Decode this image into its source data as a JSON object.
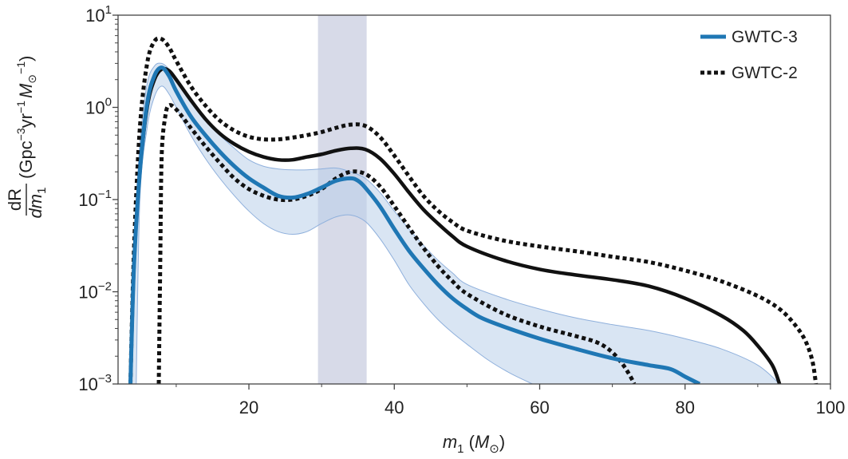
{
  "chart_data": {
    "type": "line",
    "title": "",
    "xlabel": {
      "var": "m",
      "sub": "1",
      "unit": "M",
      "unit_sub": "⊙"
    },
    "ylabel": {
      "numerator": "dR",
      "denominator": "dm",
      "denominator_sub": "1",
      "units_text": "(Gpc",
      "units_exp1": "−3",
      "units_mid": "yr",
      "units_exp2": "−1",
      "units_M": "M",
      "units_M_sub": "⊙",
      "units_exp3": "−1",
      "units_close": ")"
    },
    "x_scale": "linear",
    "y_scale": "log",
    "xlim": [
      2,
      100
    ],
    "ylim": [
      0.001,
      10
    ],
    "x_ticks": [
      {
        "value": 20,
        "label": "20"
      },
      {
        "value": 40,
        "label": "40"
      },
      {
        "value": 60,
        "label": "60"
      },
      {
        "value": 80,
        "label": "80"
      },
      {
        "value": 100,
        "label": "100"
      }
    ],
    "y_ticks": [
      {
        "value": 0.001,
        "base": "10",
        "exp": "−3"
      },
      {
        "value": 0.01,
        "base": "10",
        "exp": "−2"
      },
      {
        "value": 0.1,
        "base": "10",
        "exp": "−1"
      },
      {
        "value": 1,
        "base": "10",
        "exp": "0"
      },
      {
        "value": 10,
        "base": "10",
        "exp": "1"
      }
    ],
    "highlight_band": {
      "x_range": [
        29.5,
        36.2
      ],
      "color": "#c9cde0"
    },
    "legend": {
      "position": "top-right",
      "entries": [
        {
          "label": "GWTC-3",
          "style": "solid",
          "color": "#1f77b4"
        },
        {
          "label": "GWTC-2",
          "style": "dotted",
          "color": "#111111"
        }
      ]
    },
    "series": [
      {
        "label": "GWTC-3",
        "style": "solid",
        "color": "#1f77b4",
        "x": [
          3.7,
          4.2,
          5.0,
          6.0,
          7.0,
          8.0,
          9.0,
          10.0,
          12.0,
          14.0,
          16.0,
          18.0,
          20.0,
          22.0,
          24.0,
          26.0,
          28.0,
          30.0,
          32.0,
          34.0,
          35.0,
          36.0,
          38.0,
          40.0,
          42.0,
          44.0,
          46.0,
          48.0,
          50.0,
          52.0,
          55.0,
          60.0,
          65.0,
          70.0,
          75.0,
          78.0,
          80.0,
          82.0
        ],
        "y": [
          0.001,
          0.02,
          0.2,
          1.1,
          2.2,
          2.7,
          2.2,
          1.5,
          0.8,
          0.5,
          0.33,
          0.23,
          0.17,
          0.135,
          0.11,
          0.105,
          0.115,
          0.135,
          0.16,
          0.17,
          0.16,
          0.135,
          0.085,
          0.048,
          0.028,
          0.018,
          0.012,
          0.0085,
          0.0065,
          0.0052,
          0.0042,
          0.0031,
          0.0024,
          0.0019,
          0.0016,
          0.00145,
          0.0012,
          0.001
        ]
      },
      {
        "label": "GWTC-3 90% credible upper",
        "style": "band-upper",
        "color": "#aec7e8",
        "x": [
          3.7,
          4.2,
          5.0,
          6.0,
          7.0,
          8.0,
          9.0,
          10.0,
          12.0,
          14.0,
          16.0,
          18.0,
          20.0,
          22.0,
          24.0,
          26.0,
          28.0,
          30.0,
          32.0,
          34.0,
          36.0,
          38.0,
          40.0,
          42.0,
          44.0,
          46.0,
          48.0,
          50.0,
          55.0,
          60.0,
          65.0,
          70.0,
          75.0,
          80.0,
          85.0,
          90.0,
          93.0
        ],
        "y": [
          0.001,
          0.03,
          0.4,
          1.8,
          2.8,
          3.0,
          2.6,
          2.0,
          1.2,
          0.75,
          0.5,
          0.36,
          0.27,
          0.23,
          0.215,
          0.21,
          0.21,
          0.215,
          0.22,
          0.2,
          0.17,
          0.12,
          0.075,
          0.048,
          0.032,
          0.022,
          0.016,
          0.012,
          0.0085,
          0.0065,
          0.0052,
          0.0044,
          0.0038,
          0.0031,
          0.0024,
          0.0016,
          0.001
        ]
      },
      {
        "label": "GWTC-3 90% credible lower",
        "style": "band-lower",
        "color": "#aec7e8",
        "x": [
          4.5,
          5.0,
          6.0,
          7.0,
          8.0,
          9.0,
          10.0,
          12.0,
          14.0,
          16.0,
          18.0,
          20.0,
          22.0,
          24.0,
          26.0,
          28.0,
          30.0,
          32.0,
          34.0,
          36.0,
          38.0,
          40.0,
          42.0,
          44.0,
          46.0,
          48.0,
          50.0,
          53.0,
          56.0,
          59.0
        ],
        "y": [
          0.001,
          0.1,
          0.6,
          1.3,
          1.7,
          1.4,
          1.0,
          0.5,
          0.28,
          0.17,
          0.11,
          0.075,
          0.055,
          0.045,
          0.042,
          0.045,
          0.055,
          0.065,
          0.068,
          0.058,
          0.038,
          0.022,
          0.012,
          0.0075,
          0.005,
          0.0036,
          0.0027,
          0.0018,
          0.0013,
          0.001
        ]
      },
      {
        "label": "GWTC-2 median",
        "style": "solid",
        "color": "#111111",
        "x": [
          3.7,
          4.2,
          5.0,
          6.0,
          7.0,
          8.0,
          9.0,
          10.0,
          12.0,
          14.0,
          16.0,
          18.0,
          20.0,
          22.0,
          24.0,
          26.0,
          28.0,
          30.0,
          32.0,
          34.0,
          36.0,
          38.0,
          40.0,
          42.0,
          44.0,
          46.0,
          48.0,
          50.0,
          55.0,
          60.0,
          65.0,
          70.0,
          75.0,
          80.0,
          85.0,
          88.0,
          90.0,
          92.0,
          93.0
        ],
        "y": [
          0.001,
          0.02,
          0.2,
          1.0,
          2.0,
          2.6,
          2.5,
          2.0,
          1.2,
          0.75,
          0.52,
          0.4,
          0.33,
          0.29,
          0.27,
          0.27,
          0.29,
          0.31,
          0.34,
          0.36,
          0.35,
          0.28,
          0.19,
          0.12,
          0.078,
          0.055,
          0.04,
          0.031,
          0.022,
          0.0175,
          0.0152,
          0.0135,
          0.0115,
          0.0085,
          0.0055,
          0.0038,
          0.0026,
          0.0016,
          0.001
        ]
      },
      {
        "label": "GWTC-2 90% credible upper",
        "style": "dotted",
        "color": "#111111",
        "x": [
          3.7,
          4.2,
          5.0,
          6.0,
          7.0,
          8.0,
          9.0,
          10.0,
          12.0,
          14.0,
          16.0,
          18.0,
          20.0,
          22.0,
          24.0,
          26.0,
          28.0,
          30.0,
          32.0,
          34.0,
          36.0,
          38.0,
          40.0,
          42.0,
          44.0,
          46.0,
          48.0,
          50.0,
          55.0,
          60.0,
          65.0,
          70.0,
          75.0,
          80.0,
          85.0,
          90.0,
          93.0,
          95.0,
          96.5,
          97.5,
          98.0
        ],
        "y": [
          0.001,
          0.03,
          0.6,
          3.0,
          5.2,
          5.5,
          4.5,
          3.2,
          1.7,
          1.05,
          0.72,
          0.56,
          0.48,
          0.45,
          0.45,
          0.47,
          0.5,
          0.54,
          0.6,
          0.65,
          0.63,
          0.48,
          0.3,
          0.18,
          0.11,
          0.076,
          0.057,
          0.046,
          0.036,
          0.031,
          0.0275,
          0.024,
          0.021,
          0.017,
          0.013,
          0.009,
          0.0065,
          0.0045,
          0.003,
          0.0018,
          0.001
        ]
      },
      {
        "label": "GWTC-2 90% credible lower",
        "style": "dotted",
        "color": "#111111",
        "x": [
          7.6,
          7.8,
          8.0,
          8.5,
          9.0,
          10.0,
          12.0,
          14.0,
          16.0,
          18.0,
          20.0,
          22.0,
          24.0,
          26.0,
          28.0,
          30.0,
          32.0,
          34.0,
          36.0,
          38.0,
          40.0,
          42.0,
          44.0,
          46.0,
          48.0,
          50.0,
          55.0,
          60.0,
          65.0,
          68.0,
          70.0,
          71.5,
          72.5,
          73.0
        ],
        "y": [
          0.001,
          0.02,
          0.3,
          0.8,
          1.05,
          0.95,
          0.6,
          0.38,
          0.25,
          0.17,
          0.13,
          0.11,
          0.1,
          0.1,
          0.11,
          0.13,
          0.17,
          0.2,
          0.19,
          0.14,
          0.085,
          0.05,
          0.03,
          0.019,
          0.013,
          0.0095,
          0.0058,
          0.0042,
          0.0033,
          0.0028,
          0.0022,
          0.0016,
          0.0012,
          0.001
        ]
      }
    ]
  }
}
